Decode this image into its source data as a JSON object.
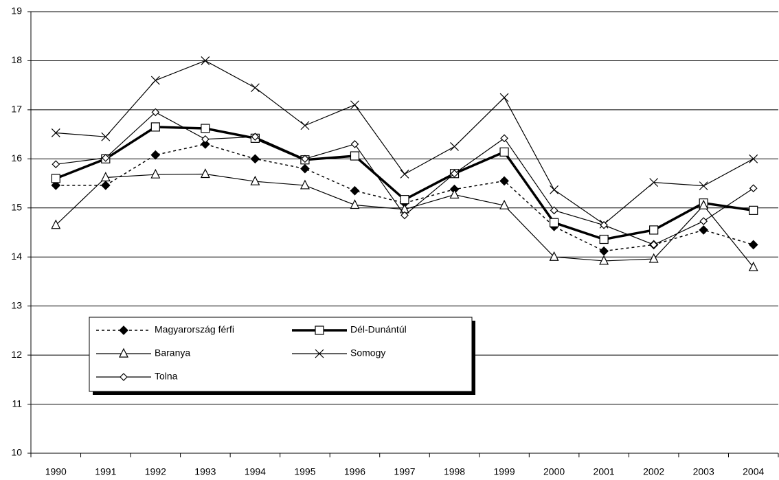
{
  "chart_data": {
    "type": "line",
    "categories": [
      "1990",
      "1991",
      "1992",
      "1993",
      "1994",
      "1995",
      "1996",
      "1997",
      "1998",
      "1999",
      "2000",
      "2001",
      "2002",
      "2003",
      "2004"
    ],
    "series": [
      {
        "name": "Magyarország férfi",
        "color": "#000000",
        "line_style": "dotted",
        "marker": "diamond-filled",
        "values": [
          15.46,
          15.46,
          16.08,
          16.3,
          16.0,
          15.8,
          15.35,
          15.1,
          15.38,
          15.55,
          14.62,
          14.12,
          14.25,
          14.55,
          14.25
        ]
      },
      {
        "name": "Dél-Dunántúl",
        "color": "#000000",
        "line_style": "bold",
        "marker": "square",
        "values": [
          15.6,
          16.0,
          16.65,
          16.62,
          16.42,
          15.98,
          16.06,
          15.17,
          15.7,
          16.14,
          14.7,
          14.36,
          14.55,
          15.1,
          14.95
        ]
      },
      {
        "name": "Baranya",
        "color": "#000000",
        "line_style": "solid",
        "marker": "triangle",
        "values": [
          14.65,
          15.62,
          15.68,
          15.69,
          15.54,
          15.46,
          15.06,
          14.97,
          15.27,
          15.05,
          14.0,
          13.92,
          13.96,
          15.05,
          13.79
        ]
      },
      {
        "name": "Somogy",
        "color": "#000000",
        "line_style": "solid",
        "marker": "x",
        "values": [
          16.53,
          16.45,
          17.6,
          18.0,
          17.45,
          16.68,
          17.1,
          15.69,
          16.25,
          17.25,
          15.37,
          14.67,
          15.52,
          15.45,
          16.0
        ]
      },
      {
        "name": "Tolna",
        "color": "#000000",
        "line_style": "solid",
        "marker": "diamond-open",
        "values": [
          15.89,
          16.02,
          16.95,
          16.4,
          16.45,
          16.0,
          16.3,
          14.85,
          15.7,
          16.42,
          14.95,
          14.65,
          14.25,
          14.73,
          15.4
        ]
      }
    ],
    "ylim": [
      10,
      19
    ],
    "yticks": [
      10,
      11,
      12,
      13,
      14,
      15,
      16,
      17,
      18,
      19
    ],
    "grid": true
  }
}
